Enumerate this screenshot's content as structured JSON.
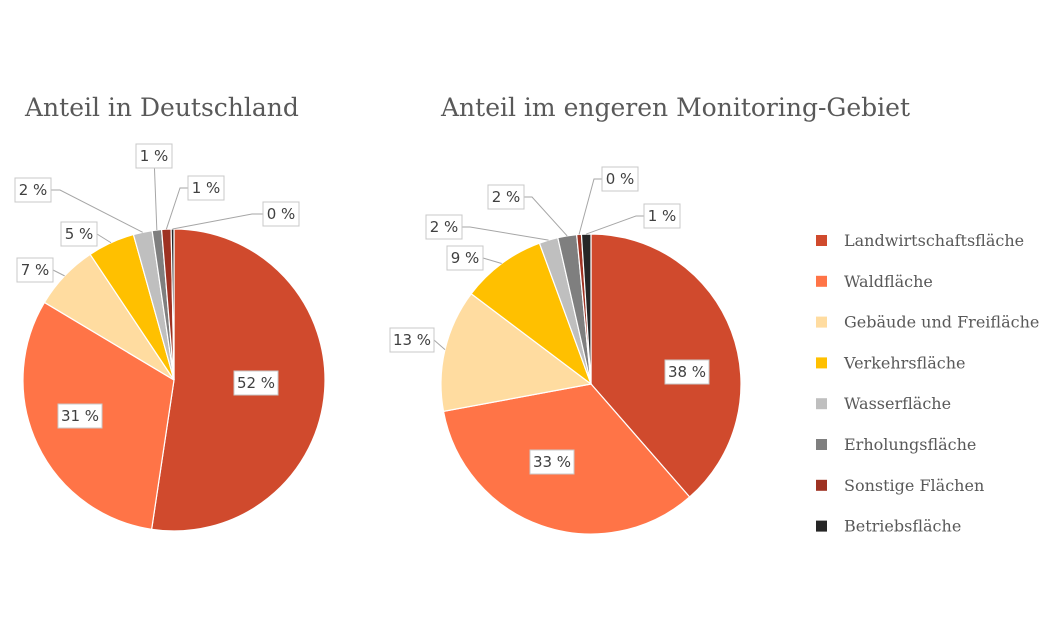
{
  "chart_data": [
    {
      "type": "pie",
      "title": "Anteil in Deutschland",
      "slices": [
        {
          "name": "Landwirtschaftsfläche",
          "value": 52,
          "label": "52 %"
        },
        {
          "name": "Waldfläche",
          "value": 31,
          "label": "31 %"
        },
        {
          "name": "Gebäude und Freifläche",
          "value": 7,
          "label": "7 %"
        },
        {
          "name": "Verkehrsfläche",
          "value": 5,
          "label": "5 %"
        },
        {
          "name": "Wasserfläche",
          "value": 2,
          "label": "2 %"
        },
        {
          "name": "Erholungsfläche",
          "value": 1,
          "label": "1 %"
        },
        {
          "name": "Sonstige Flächen",
          "value": 1,
          "label": "1 %"
        },
        {
          "name": "Betriebsfläche",
          "value": 0.3,
          "label": "0 %"
        }
      ]
    },
    {
      "type": "pie",
      "title": "Anteil im engeren Monitoring-Gebiet",
      "slices": [
        {
          "name": "Landwirtschaftsfläche",
          "value": 38,
          "label": "38 %"
        },
        {
          "name": "Waldfläche",
          "value": 33,
          "label": "33 %"
        },
        {
          "name": "Gebäude und Freifläche",
          "value": 13,
          "label": "13 %"
        },
        {
          "name": "Verkehrsfläche",
          "value": 9,
          "label": "9 %"
        },
        {
          "name": "Wasserfläche",
          "value": 2,
          "label": "2 %"
        },
        {
          "name": "Erholungsfläche",
          "value": 2,
          "label": "2 %"
        },
        {
          "name": "Sonstige Flächen",
          "value": 0.5,
          "label": "0 %"
        },
        {
          "name": "Betriebsfläche",
          "value": 1,
          "label": "1 %"
        }
      ]
    }
  ],
  "legend": [
    {
      "name": "Landwirtschaftsfläche",
      "color": "#d04a2d"
    },
    {
      "name": "Waldfläche",
      "color": "#ff7447"
    },
    {
      "name": "Gebäude und Freifläche",
      "color": "#ffdca0"
    },
    {
      "name": "Verkehrsfläche",
      "color": "#ffc000"
    },
    {
      "name": "Wasserfläche",
      "color": "#bfbfbf"
    },
    {
      "name": "Erholungsfläche",
      "color": "#7f7f7f"
    },
    {
      "name": "Sonstige Flächen",
      "color": "#9e3222"
    },
    {
      "name": "Betriebsfläche",
      "color": "#262626"
    }
  ]
}
